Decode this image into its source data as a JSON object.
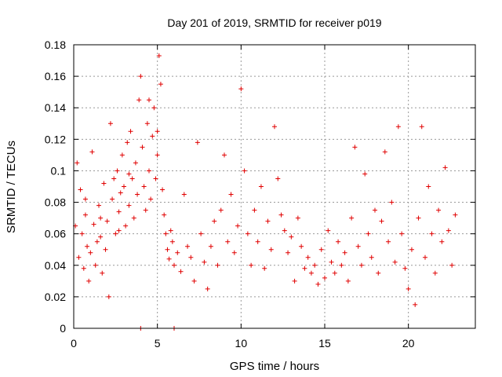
{
  "chart_data": {
    "type": "scatter",
    "title": "Day 201 of 2019, SRMTID for receiver p019",
    "xlabel": "GPS time / hours",
    "ylabel": "SRMTID / TECUs",
    "xlim": [
      0,
      24
    ],
    "ylim": [
      0,
      0.18
    ],
    "xticks": [
      0,
      5,
      10,
      15,
      20
    ],
    "yticks": [
      0,
      0.02,
      0.04,
      0.06,
      0.08,
      0.1,
      0.12,
      0.14,
      0.16,
      0.18
    ],
    "xtick_labels": [
      "0",
      "5",
      "10",
      "15",
      "20"
    ],
    "ytick_labels": [
      "0",
      "0.02",
      "0.04",
      "0.06",
      "0.08",
      "0.1",
      "0.12",
      "0.14",
      "0.16",
      "0.18"
    ],
    "grid": true,
    "marker": "+",
    "color": "#e00000",
    "series": [
      {
        "name": "SRMTID",
        "points": [
          [
            0.1,
            0.065
          ],
          [
            0.2,
            0.105
          ],
          [
            0.3,
            0.045
          ],
          [
            0.4,
            0.088
          ],
          [
            0.5,
            0.06
          ],
          [
            0.6,
            0.038
          ],
          [
            0.7,
            0.072
          ],
          [
            0.8,
            0.052
          ],
          [
            0.9,
            0.03
          ],
          [
            1.0,
            0.048
          ],
          [
            1.1,
            0.112
          ],
          [
            1.2,
            0.066
          ],
          [
            1.3,
            0.04
          ],
          [
            1.4,
            0.055
          ],
          [
            1.5,
            0.078
          ],
          [
            1.6,
            0.058
          ],
          [
            1.7,
            0.035
          ],
          [
            1.8,
            0.092
          ],
          [
            1.9,
            0.05
          ],
          [
            2.0,
            0.068
          ],
          [
            2.1,
            0.02
          ],
          [
            2.2,
            0.13
          ],
          [
            2.3,
            0.082
          ],
          [
            2.4,
            0.095
          ],
          [
            2.5,
            0.06
          ],
          [
            2.6,
            0.1
          ],
          [
            2.7,
            0.074
          ],
          [
            2.8,
            0.086
          ],
          [
            2.9,
            0.11
          ],
          [
            3.0,
            0.09
          ],
          [
            3.1,
            0.065
          ],
          [
            3.2,
            0.118
          ],
          [
            3.3,
            0.078
          ],
          [
            3.4,
            0.125
          ],
          [
            3.5,
            0.095
          ],
          [
            3.6,
            0.07
          ],
          [
            3.7,
            0.105
          ],
          [
            3.8,
            0.085
          ],
          [
            3.9,
            0.145
          ],
          [
            4.0,
            0.16
          ],
          [
            4.1,
            0.115
          ],
          [
            4.2,
            0.09
          ],
          [
            4.3,
            0.075
          ],
          [
            4.4,
            0.13
          ],
          [
            4.5,
            0.1
          ],
          [
            4.6,
            0.082
          ],
          [
            4.7,
            0.122
          ],
          [
            4.8,
            0.14
          ],
          [
            4.9,
            0.095
          ],
          [
            5.0,
            0.11
          ],
          [
            5.1,
            0.173
          ],
          [
            5.2,
            0.155
          ],
          [
            5.3,
            0.088
          ],
          [
            5.4,
            0.072
          ],
          [
            5.5,
            0.06
          ],
          [
            5.6,
            0.05
          ],
          [
            5.7,
            0.044
          ],
          [
            5.8,
            0.062
          ],
          [
            5.9,
            0.055
          ],
          [
            6.0,
            0.04
          ],
          [
            6.2,
            0.048
          ],
          [
            6.4,
            0.036
          ],
          [
            6.6,
            0.085
          ],
          [
            6.8,
            0.052
          ],
          [
            7.0,
            0.045
          ],
          [
            7.2,
            0.03
          ],
          [
            7.4,
            0.118
          ],
          [
            7.6,
            0.06
          ],
          [
            7.8,
            0.042
          ],
          [
            8.0,
            0.025
          ],
          [
            8.2,
            0.052
          ],
          [
            8.4,
            0.068
          ],
          [
            8.6,
            0.04
          ],
          [
            8.8,
            0.075
          ],
          [
            9.0,
            0.11
          ],
          [
            9.2,
            0.055
          ],
          [
            9.4,
            0.085
          ],
          [
            9.6,
            0.048
          ],
          [
            9.8,
            0.065
          ],
          [
            10.0,
            0.152
          ],
          [
            10.2,
            0.1
          ],
          [
            10.4,
            0.06
          ],
          [
            10.6,
            0.04
          ],
          [
            10.8,
            0.075
          ],
          [
            11.0,
            0.055
          ],
          [
            11.2,
            0.09
          ],
          [
            11.4,
            0.038
          ],
          [
            11.6,
            0.068
          ],
          [
            11.8,
            0.05
          ],
          [
            12.0,
            0.128
          ],
          [
            12.2,
            0.095
          ],
          [
            12.4,
            0.072
          ],
          [
            12.6,
            0.062
          ],
          [
            12.8,
            0.048
          ],
          [
            13.0,
            0.058
          ],
          [
            13.2,
            0.03
          ],
          [
            13.4,
            0.07
          ],
          [
            13.6,
            0.052
          ],
          [
            13.8,
            0.038
          ],
          [
            14.0,
            0.045
          ],
          [
            14.2,
            0.035
          ],
          [
            14.4,
            0.04
          ],
          [
            14.6,
            0.028
          ],
          [
            14.8,
            0.05
          ],
          [
            15.0,
            0.032
          ],
          [
            15.2,
            0.062
          ],
          [
            15.4,
            0.042
          ],
          [
            15.6,
            0.035
          ],
          [
            15.8,
            0.055
          ],
          [
            16.0,
            0.04
          ],
          [
            16.2,
            0.048
          ],
          [
            16.4,
            0.03
          ],
          [
            16.6,
            0.07
          ],
          [
            16.8,
            0.115
          ],
          [
            17.0,
            0.052
          ],
          [
            17.2,
            0.04
          ],
          [
            17.4,
            0.098
          ],
          [
            17.6,
            0.06
          ],
          [
            17.8,
            0.045
          ],
          [
            18.0,
            0.075
          ],
          [
            18.2,
            0.035
          ],
          [
            18.4,
            0.068
          ],
          [
            18.6,
            0.112
          ],
          [
            18.8,
            0.055
          ],
          [
            19.0,
            0.08
          ],
          [
            19.2,
            0.042
          ],
          [
            19.4,
            0.128
          ],
          [
            19.6,
            0.06
          ],
          [
            19.8,
            0.038
          ],
          [
            20.0,
            0.025
          ],
          [
            20.2,
            0.05
          ],
          [
            20.4,
            0.015
          ],
          [
            20.6,
            0.07
          ],
          [
            20.8,
            0.128
          ],
          [
            21.0,
            0.045
          ],
          [
            21.2,
            0.09
          ],
          [
            21.4,
            0.06
          ],
          [
            21.6,
            0.035
          ],
          [
            21.8,
            0.075
          ],
          [
            22.0,
            0.055
          ],
          [
            22.2,
            0.102
          ],
          [
            22.4,
            0.062
          ],
          [
            22.6,
            0.04
          ],
          [
            22.8,
            0.072
          ],
          [
            3.3,
            0.098
          ],
          [
            2.7,
            0.062
          ],
          [
            4.5,
            0.145
          ],
          [
            5.0,
            0.125
          ],
          [
            1.6,
            0.07
          ],
          [
            0.7,
            0.082
          ],
          [
            4.0,
            0.0
          ],
          [
            6.0,
            0.0
          ]
        ]
      }
    ]
  }
}
